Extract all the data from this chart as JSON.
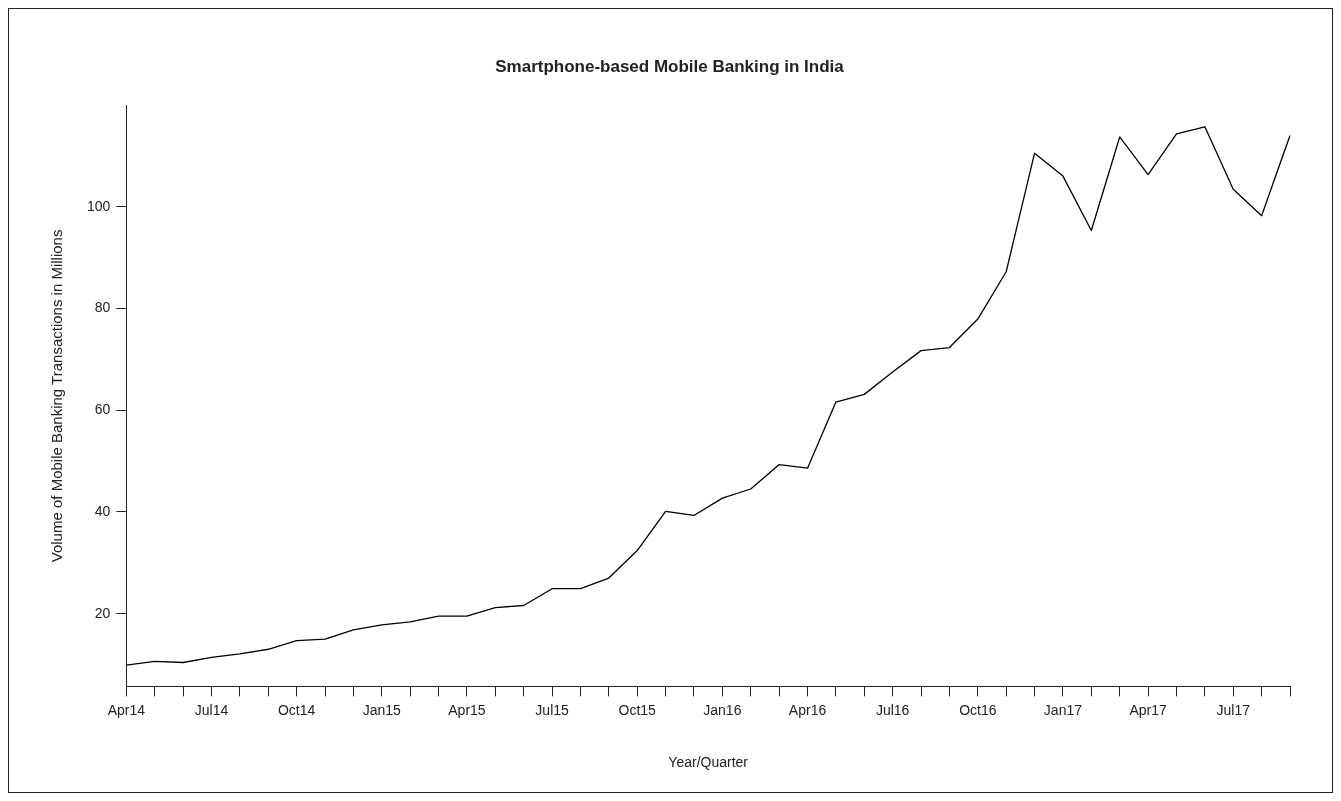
{
  "chart_data": {
    "type": "line",
    "title": "Smartphone-based Mobile Banking in India",
    "xlabel": "Year/Quarter",
    "ylabel": "Volume of Mobile Banking Transactions in Millions",
    "categories": [
      "Apr14",
      null,
      null,
      "Jul14",
      null,
      null,
      "Oct14",
      null,
      null,
      "Jan15",
      null,
      null,
      "Apr15",
      null,
      null,
      "Jul15",
      null,
      null,
      "Oct15",
      null,
      null,
      "Jan16",
      null,
      null,
      "Apr16",
      null,
      null,
      "Jul16",
      null,
      null,
      "Oct16",
      null,
      null,
      "Jan17",
      null,
      null,
      "Apr17",
      null,
      null,
      "Jul17",
      null,
      null
    ],
    "series": [
      {
        "color": "#000000",
        "values": [
          9.9,
          10.6,
          10.4,
          11.4,
          12.1,
          13.0,
          14.7,
          15.0,
          16.8,
          17.8,
          18.4,
          19.5,
          19.5,
          21.2,
          21.6,
          24.9,
          24.9,
          27.0,
          32.4,
          40.1,
          39.3,
          42.7,
          44.5,
          49.3,
          48.6,
          61.6,
          63.1,
          67.5,
          71.7,
          72.3,
          77.9,
          87.2,
          110.5,
          106.0,
          95.3,
          113.7,
          106.3,
          114.3,
          115.7,
          103.4,
          98.2,
          114.0
        ]
      }
    ],
    "ylim": [
      5.7,
      119.9
    ],
    "yticks": [
      20,
      40,
      60,
      80,
      100
    ]
  }
}
